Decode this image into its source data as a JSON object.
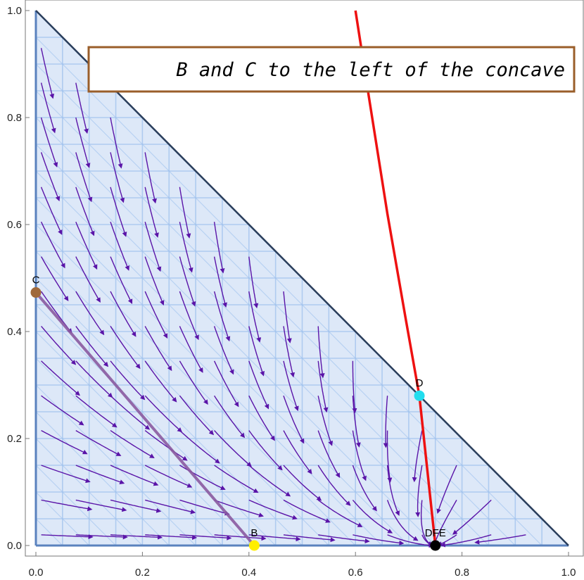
{
  "chart_data": {
    "type": "stream",
    "xlim": [
      0,
      1
    ],
    "ylim": [
      0,
      1
    ],
    "x_ticks": [
      "0.0",
      "0.2",
      "0.4",
      "0.6",
      "0.8",
      "1.0"
    ],
    "y_ticks": [
      "0.0",
      "0.2",
      "0.4",
      "0.6",
      "0.8",
      "1.0"
    ],
    "region": {
      "description": "simplex x + y <= 1",
      "vertices": [
        [
          0,
          0
        ],
        [
          1,
          0
        ],
        [
          0,
          1
        ]
      ]
    },
    "points": [
      {
        "label": "C",
        "x": 0.0,
        "y": 0.473,
        "color": "#a0693a"
      },
      {
        "label": "B",
        "x": 0.41,
        "y": 0.0,
        "color": "#ffee00"
      },
      {
        "label": "D",
        "x": 0.72,
        "y": 0.28,
        "color": "#22ddee"
      },
      {
        "label": "DFE",
        "x": 0.75,
        "y": 0.0,
        "color": "#000000"
      }
    ],
    "segment_BC": {
      "from": [
        0.0,
        0.473
      ],
      "to": [
        0.41,
        0.0
      ],
      "color": "#8a5aa0"
    },
    "red_curve": [
      [
        0.6,
        1.0
      ],
      [
        0.625,
        0.84
      ],
      [
        0.66,
        0.62
      ],
      [
        0.695,
        0.42
      ],
      [
        0.72,
        0.28
      ],
      [
        0.735,
        0.14
      ],
      [
        0.75,
        0.0
      ]
    ],
    "flow_equilibrium": [
      0.75,
      0.0
    ],
    "annotation": "B and C to the left of the concave",
    "colors": {
      "stream": "#5a14a8",
      "region_fill": "#dde8f8",
      "region_mesh": "#9fc2ee",
      "region_edge": "#5a82be",
      "hypotenuse": "#2a3e5c",
      "red_curve": "#ee1111",
      "annotation_border": "#9a5e2a"
    }
  }
}
